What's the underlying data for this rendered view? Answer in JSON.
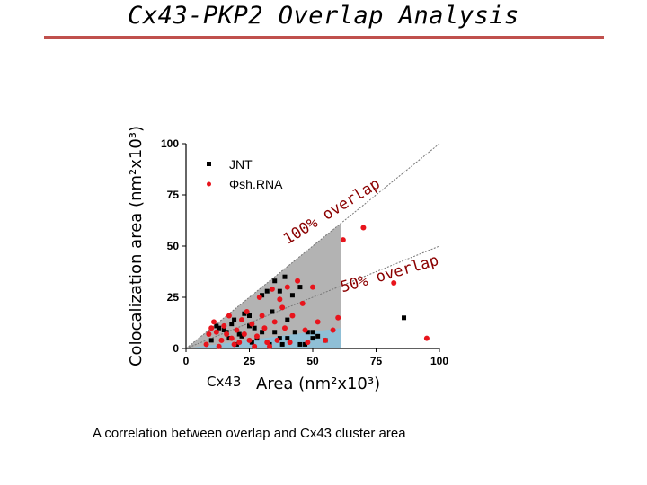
{
  "slide": {
    "title": "Cx43-PKP2 Overlap Analysis",
    "caption": "A correlation between overlap and Cx43 cluster area"
  },
  "chart_data": {
    "type": "scatter",
    "xlabel_prefix": "Cx43",
    "xlabel": "Area (nm²x10³)",
    "ylabel": "Colocalization area (nm²x10³)",
    "xlim": [
      0,
      100
    ],
    "ylim": [
      0,
      100
    ],
    "xticks": [
      0,
      25,
      50,
      75,
      100
    ],
    "yticks": [
      0,
      25,
      50,
      75,
      100
    ],
    "grid": false,
    "legend_position": "top-left",
    "annotations": {
      "line_100": "100% overlap",
      "line_50": "50% overlap"
    },
    "colors": {
      "jnt": "#000000",
      "shrna": "#e8141c",
      "region_100": "#a6a6a6",
      "region_50": "#8fbfd6",
      "annotation": "#8b0000",
      "title_rule": "#c0504d"
    },
    "series": [
      {
        "name": "JNT",
        "marker": "square",
        "points": [
          [
            10,
            4
          ],
          [
            12,
            11
          ],
          [
            13,
            10
          ],
          [
            15,
            9
          ],
          [
            16,
            8
          ],
          [
            17,
            5
          ],
          [
            18,
            12
          ],
          [
            19,
            14
          ],
          [
            20,
            2
          ],
          [
            21,
            7
          ],
          [
            22,
            6
          ],
          [
            23,
            17
          ],
          [
            25,
            16
          ],
          [
            25,
            11
          ],
          [
            26,
            3
          ],
          [
            27,
            10
          ],
          [
            28,
            5
          ],
          [
            30,
            26
          ],
          [
            30,
            8
          ],
          [
            32,
            28
          ],
          [
            33,
            2
          ],
          [
            34,
            18
          ],
          [
            35,
            8
          ],
          [
            35,
            33
          ],
          [
            37,
            28
          ],
          [
            37,
            5
          ],
          [
            38,
            2
          ],
          [
            39,
            35
          ],
          [
            40,
            14
          ],
          [
            40,
            5
          ],
          [
            42,
            26
          ],
          [
            43,
            8
          ],
          [
            45,
            30
          ],
          [
            45,
            2
          ],
          [
            47,
            2
          ],
          [
            48,
            8
          ],
          [
            50,
            8
          ],
          [
            50,
            5
          ],
          [
            52,
            6
          ],
          [
            55,
            4
          ],
          [
            86,
            15
          ]
        ]
      },
      {
        "name": "Φsh.RNA",
        "marker": "circle",
        "points": [
          [
            8,
            2
          ],
          [
            9,
            7
          ],
          [
            10,
            10
          ],
          [
            11,
            13
          ],
          [
            12,
            8
          ],
          [
            13,
            1
          ],
          [
            14,
            4
          ],
          [
            15,
            11
          ],
          [
            16,
            7
          ],
          [
            17,
            16
          ],
          [
            18,
            5
          ],
          [
            19,
            2
          ],
          [
            20,
            9
          ],
          [
            21,
            3
          ],
          [
            22,
            14
          ],
          [
            23,
            7
          ],
          [
            24,
            18
          ],
          [
            25,
            4
          ],
          [
            26,
            12
          ],
          [
            27,
            1
          ],
          [
            28,
            6
          ],
          [
            29,
            25
          ],
          [
            30,
            16
          ],
          [
            31,
            10
          ],
          [
            32,
            3
          ],
          [
            33,
            1
          ],
          [
            34,
            29
          ],
          [
            35,
            13
          ],
          [
            36,
            4
          ],
          [
            37,
            24
          ],
          [
            38,
            20
          ],
          [
            39,
            10
          ],
          [
            40,
            30
          ],
          [
            41,
            3
          ],
          [
            42,
            16
          ],
          [
            44,
            33
          ],
          [
            46,
            22
          ],
          [
            47,
            9
          ],
          [
            48,
            3
          ],
          [
            50,
            30
          ],
          [
            52,
            13
          ],
          [
            55,
            4
          ],
          [
            58,
            9
          ],
          [
            60,
            15
          ],
          [
            62,
            53
          ],
          [
            70,
            59
          ],
          [
            82,
            32
          ],
          [
            95,
            5
          ]
        ]
      }
    ]
  }
}
